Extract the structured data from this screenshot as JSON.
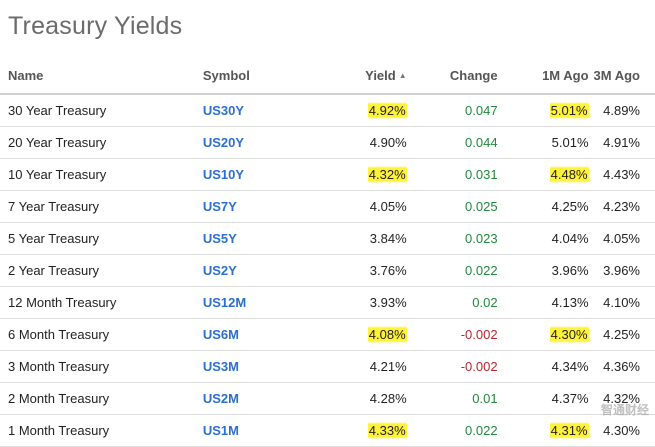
{
  "title": "Treasury Yields",
  "columns": {
    "name": "Name",
    "symbol": "Symbol",
    "yield": "Yield",
    "change": "Change",
    "one_month": "1M Ago",
    "three_month": "3M Ago"
  },
  "rows": [
    {
      "name": "30 Year Treasury",
      "symbol": "US30Y",
      "yield": "4.92%",
      "change": "0.047",
      "one_month": "5.01%",
      "three_month": "4.89%"
    },
    {
      "name": "20 Year Treasury",
      "symbol": "US20Y",
      "yield": "4.90%",
      "change": "0.044",
      "one_month": "5.01%",
      "three_month": "4.91%"
    },
    {
      "name": "10 Year Treasury",
      "symbol": "US10Y",
      "yield": "4.32%",
      "change": "0.031",
      "one_month": "4.48%",
      "three_month": "4.43%"
    },
    {
      "name": "7 Year Treasury",
      "symbol": "US7Y",
      "yield": "4.05%",
      "change": "0.025",
      "one_month": "4.25%",
      "three_month": "4.23%"
    },
    {
      "name": "5 Year Treasury",
      "symbol": "US5Y",
      "yield": "3.84%",
      "change": "0.023",
      "one_month": "4.04%",
      "three_month": "4.05%"
    },
    {
      "name": "2 Year Treasury",
      "symbol": "US2Y",
      "yield": "3.76%",
      "change": "0.022",
      "one_month": "3.96%",
      "three_month": "3.96%"
    },
    {
      "name": "12 Month Treasury",
      "symbol": "US12M",
      "yield": "3.93%",
      "change": "0.02",
      "one_month": "4.13%",
      "three_month": "4.10%"
    },
    {
      "name": "6 Month Treasury",
      "symbol": "US6M",
      "yield": "4.08%",
      "change": "-0.002",
      "one_month": "4.30%",
      "three_month": "4.25%"
    },
    {
      "name": "3 Month Treasury",
      "symbol": "US3M",
      "yield": "4.21%",
      "change": "-0.002",
      "one_month": "4.34%",
      "three_month": "4.36%"
    },
    {
      "name": "2 Month Treasury",
      "symbol": "US2M",
      "yield": "4.28%",
      "change": "0.01",
      "one_month": "4.37%",
      "three_month": "4.32%"
    },
    {
      "name": "1 Month Treasury",
      "symbol": "US1M",
      "yield": "4.33%",
      "change": "0.022",
      "one_month": "4.31%",
      "three_month": "4.30%"
    }
  ],
  "colors": {
    "positive": "#1f8a3b",
    "negative": "#c0262d",
    "symbol_link": "#2d6fcf",
    "highlight": "#fff23a"
  },
  "highlights": {
    "yield": [
      "US30Y",
      "US10Y",
      "US6M",
      "US1M"
    ],
    "one_month": [
      "US30Y",
      "US10Y",
      "US6M",
      "US1M"
    ]
  },
  "sort_indicator": "sort-ascending-icon",
  "watermark": "智通财经"
}
